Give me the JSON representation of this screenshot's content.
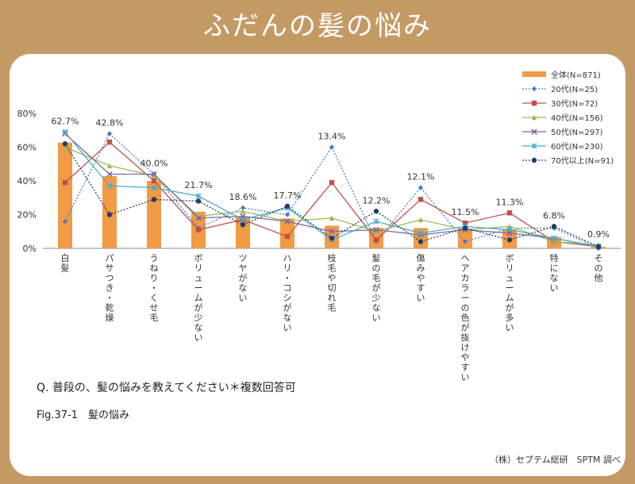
{
  "header": {
    "title": "ふだんの髪の悩み"
  },
  "question": "Q. 普段の、髪の悩みを教えてください＊複数回答可",
  "figure_caption": "Fig.37-1　髪の悩み",
  "credit": "（株）セプテム総研　SPTM 調べ",
  "chart_data": {
    "type": "bar",
    "categories": [
      "白髪",
      "パサつき・乾燥",
      "うねり・くせ毛",
      "ボリュームが少ない",
      "ツヤがない",
      "ハリ・コシがない",
      "枝毛や切れ毛",
      "髪の毛が少ない",
      "傷みやすい",
      "ヘアカラーの色が抜けやすい",
      "ボリュームが多い",
      "特にない",
      "その他"
    ],
    "ylim": [
      0,
      80
    ],
    "yticks": [
      "0%",
      "20%",
      "40%",
      "60%",
      "80%"
    ],
    "bar_labels": [
      "62.7%",
      "42.8%",
      "40.0%",
      "21.7%",
      "18.6%",
      "17.7%",
      "13.4%",
      "12.2%",
      "12.1%",
      "11.5%",
      "11.3%",
      "6.8%",
      "0.9%"
    ],
    "series": [
      {
        "name": "全体(N=871)",
        "kind": "bar",
        "color": "#f39a45",
        "values": [
          62.7,
          42.8,
          40.0,
          21.7,
          18.6,
          17.7,
          13.4,
          12.2,
          12.1,
          11.5,
          11.3,
          6.8,
          0.9
        ]
      },
      {
        "name": "20代(N=25)",
        "kind": "line",
        "color": "#4a7ebf",
        "dash": "2,2",
        "marker": "diamond",
        "values": [
          16,
          68,
          44,
          12,
          24,
          20,
          60,
          4,
          36,
          4,
          12,
          12,
          0
        ]
      },
      {
        "name": "30代(N=72)",
        "kind": "line",
        "color": "#c0504d",
        "dash": "",
        "marker": "square",
        "values": [
          39,
          63,
          40,
          11,
          17,
          7,
          39,
          5,
          29,
          15,
          21,
          4,
          1
        ]
      },
      {
        "name": "40代(N=156)",
        "kind": "line",
        "color": "#9bbb59",
        "dash": "",
        "marker": "triangle",
        "values": [
          60,
          49,
          43,
          19,
          22,
          16,
          18,
          10,
          17,
          11,
          13,
          4,
          2
        ]
      },
      {
        "name": "50代(N=297)",
        "kind": "line",
        "color": "#8064a2",
        "dash": "",
        "marker": "x",
        "values": [
          68,
          44,
          44,
          18,
          19,
          16,
          10,
          11,
          8,
          11,
          9,
          6,
          1
        ]
      },
      {
        "name": "60代(N=230)",
        "kind": "line",
        "color": "#4bacc6",
        "dash": "",
        "marker": "star",
        "values": [
          69,
          37,
          36,
          31,
          17,
          24,
          5,
          16,
          9,
          13,
          11,
          6,
          1
        ]
      },
      {
        "name": "70代以上(N=91)",
        "kind": "line",
        "color": "#1f3d6e",
        "dash": "2,2",
        "marker": "circle",
        "values": [
          62,
          20,
          29,
          28,
          14,
          25,
          6,
          22,
          4,
          12,
          5,
          13,
          1
        ]
      }
    ],
    "legend_position": "top-right",
    "grid": false
  }
}
